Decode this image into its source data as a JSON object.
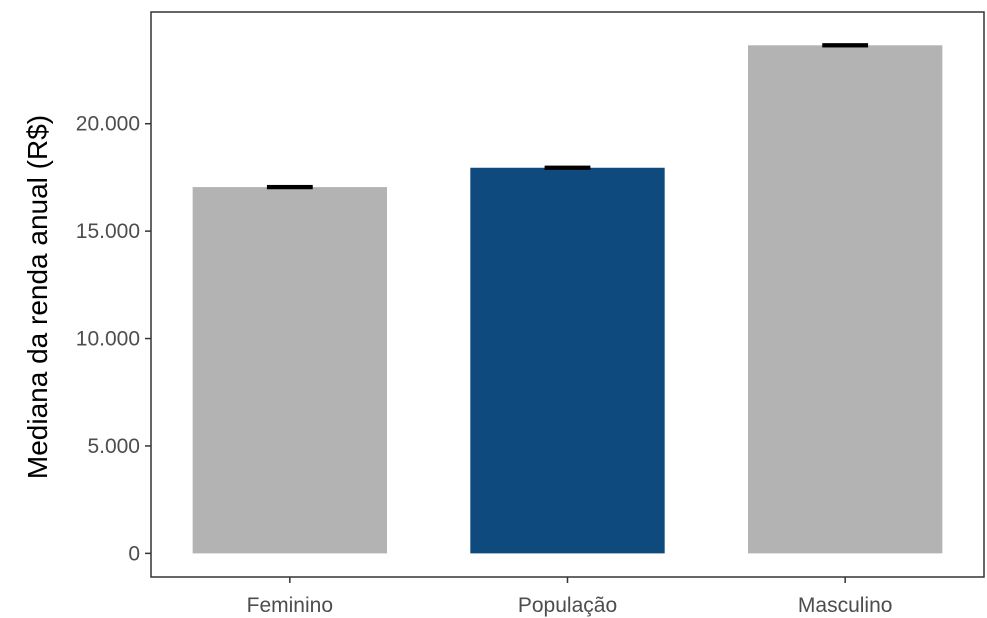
{
  "chart_data": {
    "type": "bar",
    "title": "",
    "xlabel": "",
    "ylabel": "Mediana da renda anual (R$)",
    "categories": [
      "Feminino",
      "População",
      "Masculino"
    ],
    "values": [
      17050,
      17950,
      23650
    ],
    "error_bars": [
      {
        "low": 16950,
        "high": 17150
      },
      {
        "low": 17850,
        "high": 18050
      },
      {
        "low": 23550,
        "high": 23750
      }
    ],
    "bar_colors": [
      "#b3b3b3",
      "#0e4a7d",
      "#b3b3b3"
    ],
    "errorbar_color": "#000000",
    "ylim": [
      -1100,
      25200
    ],
    "yticks": [
      0,
      5000,
      10000,
      15000,
      20000
    ],
    "ytick_labels": [
      "0",
      "5.000",
      "10.000",
      "15.000",
      "20.000"
    ],
    "grid": false,
    "legend": "none"
  }
}
